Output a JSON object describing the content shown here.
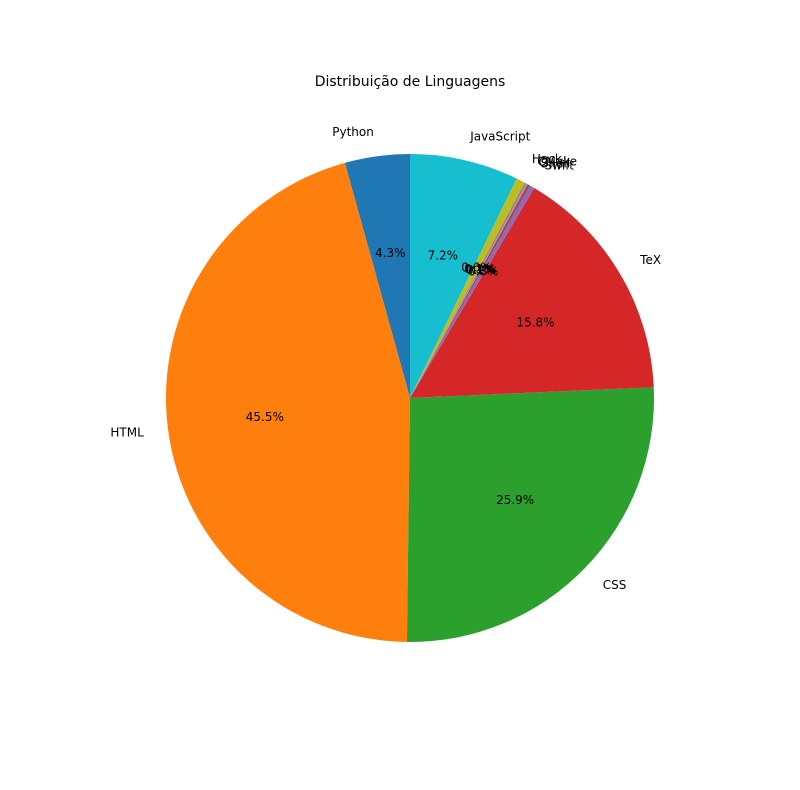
{
  "chart_data": {
    "type": "pie",
    "title": "Distribuição de Linguagens",
    "start_angle_deg": 90,
    "direction": "counterclockwise",
    "autopct_format": "%.1f%%",
    "slices": [
      {
        "label": "Python",
        "value": 4.3,
        "color": "#1f77b4"
      },
      {
        "label": "HTML",
        "value": 45.5,
        "color": "#ff7f0e"
      },
      {
        "label": "CSS",
        "value": 25.9,
        "color": "#2ca02c"
      },
      {
        "label": "TeX",
        "value": 15.8,
        "color": "#d62728"
      },
      {
        "label": "Swift",
        "value": 0.3,
        "color": "#9467bd"
      },
      {
        "label": "Shell",
        "value": 0.2,
        "color": "#8c564b"
      },
      {
        "label": "C++",
        "value": 0.1,
        "color": "#e377c2"
      },
      {
        "label": "CMake",
        "value": 0.1,
        "color": "#7f7f7f"
      },
      {
        "label": "Hack",
        "value": 0.6,
        "color": "#bcbd22"
      },
      {
        "label": "JavaScript",
        "value": 7.2,
        "color": "#17becf"
      }
    ]
  }
}
